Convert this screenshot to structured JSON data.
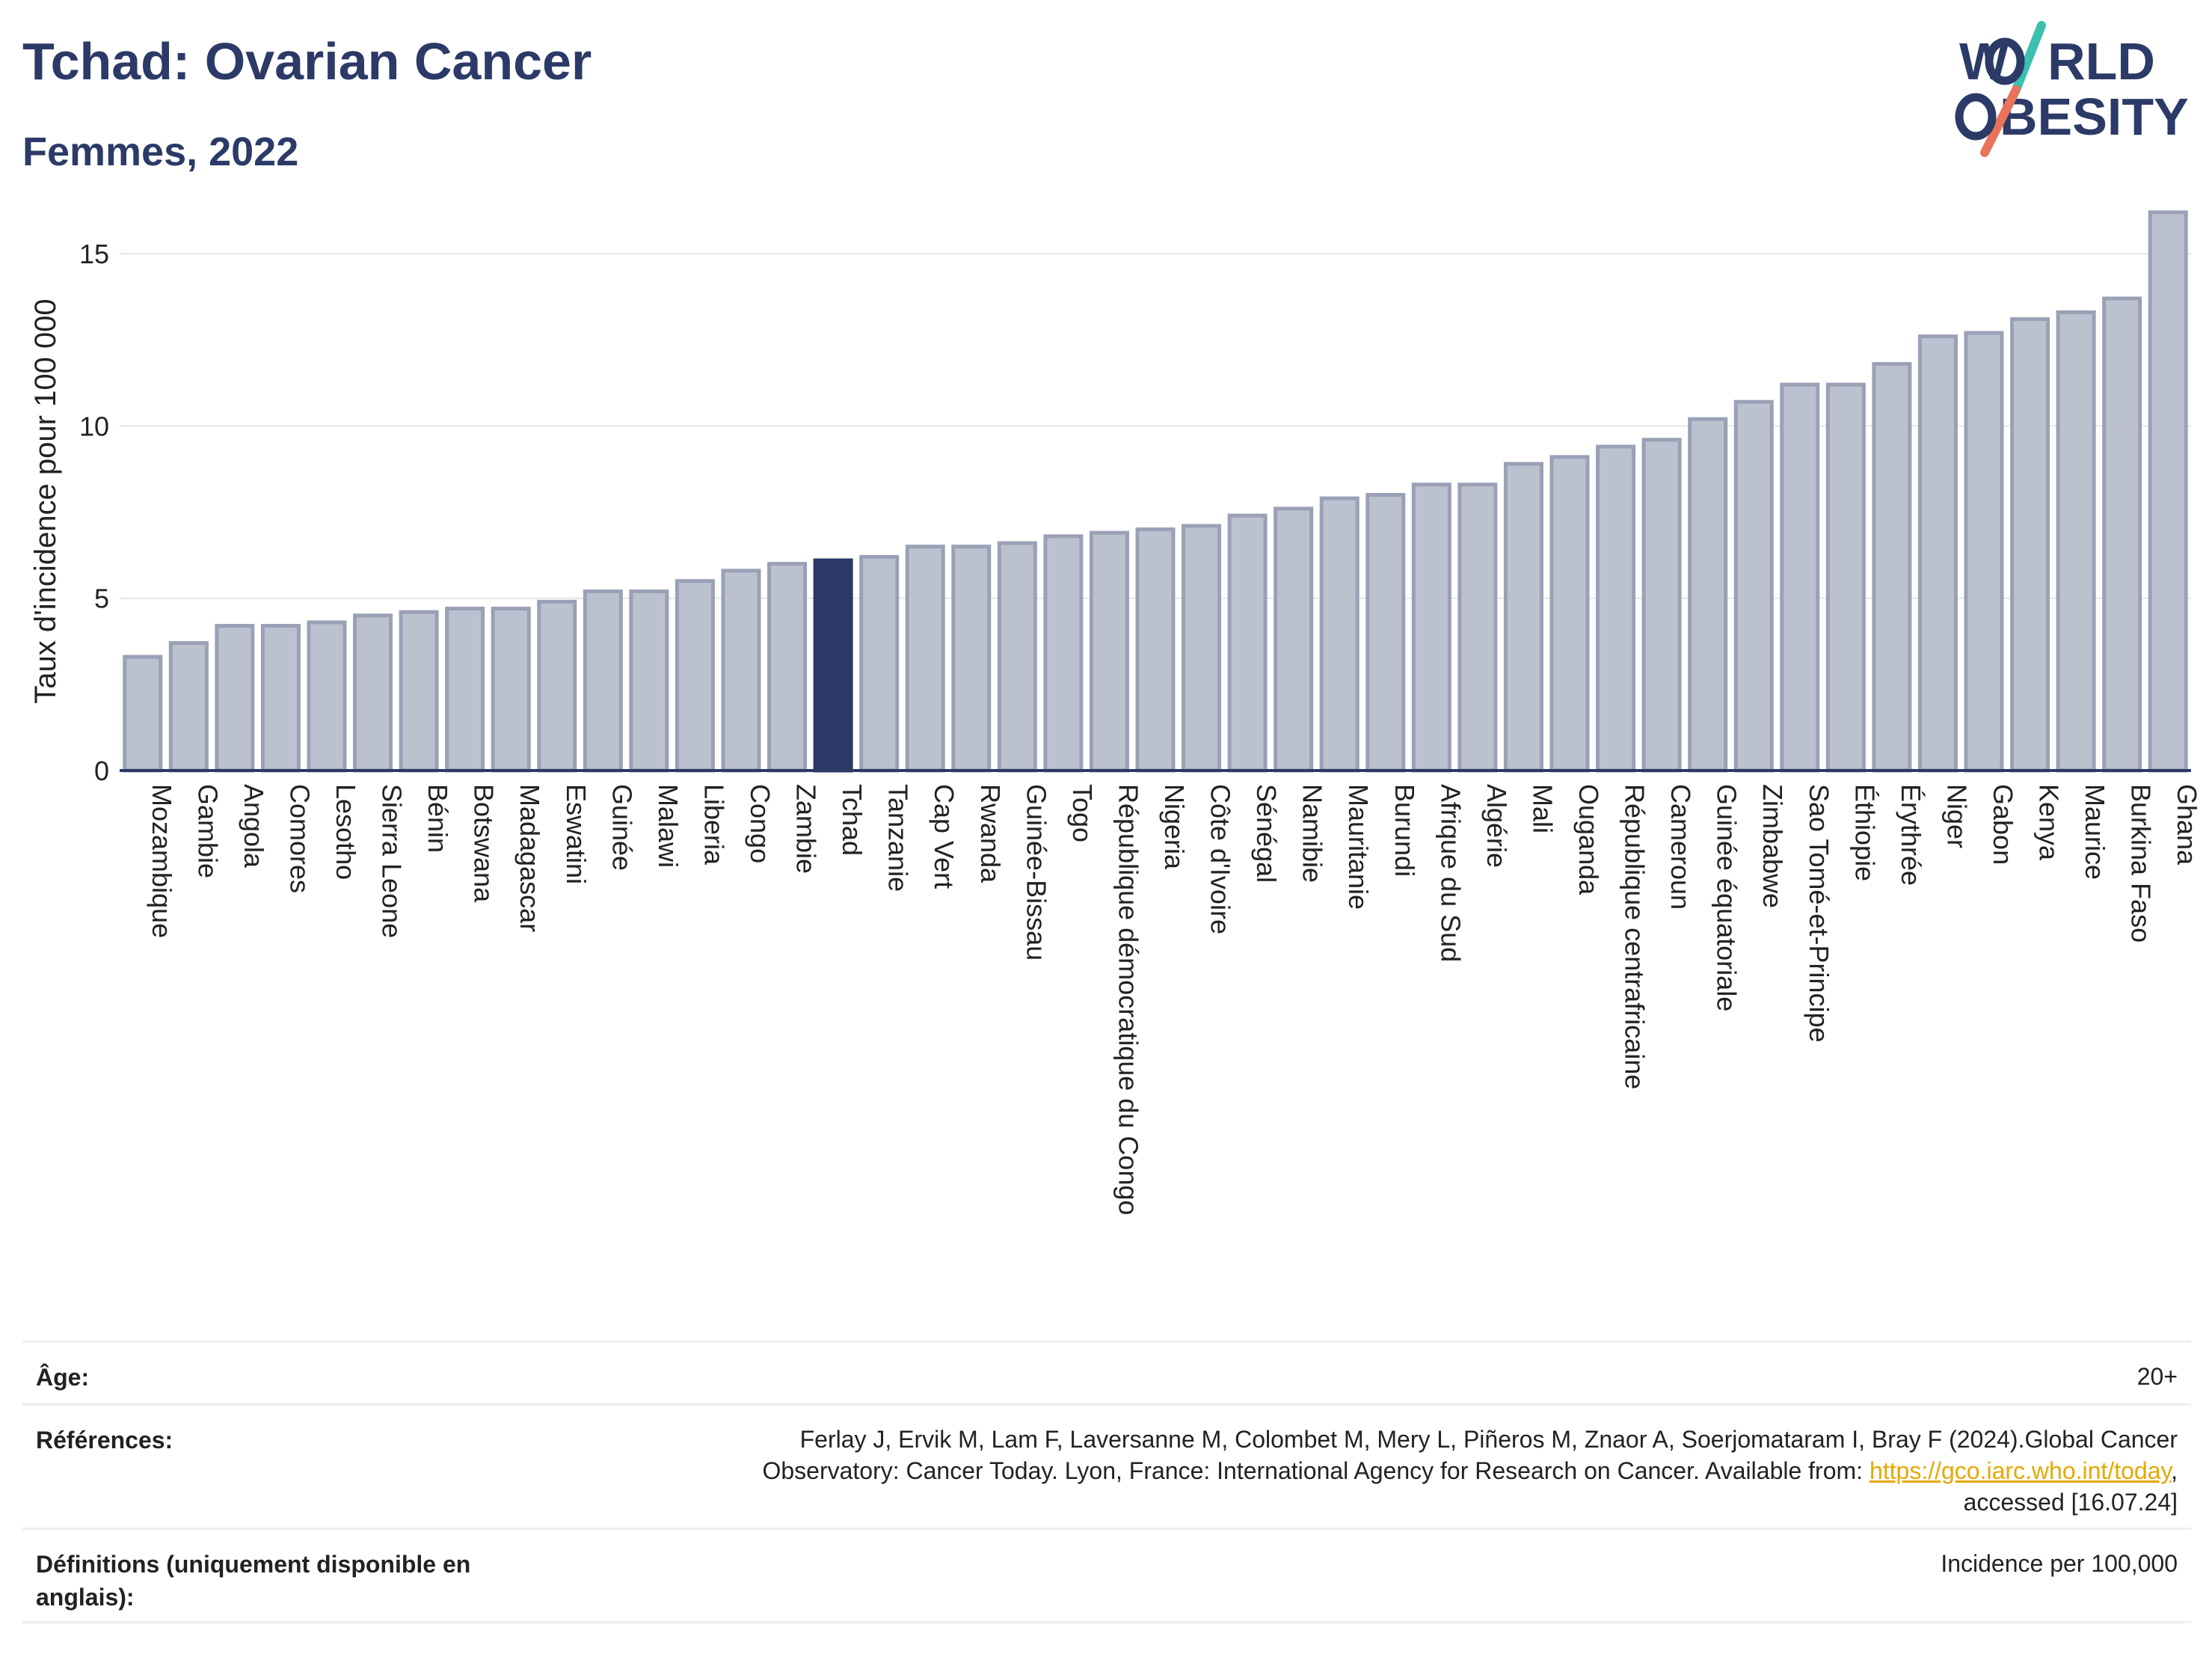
{
  "header": {
    "title": "Tchad: Ovarian Cancer",
    "subtitle": "Femmes, 2022"
  },
  "logo": {
    "line1_a": "W",
    "line1_b": "RLD",
    "line2_b": "BESITY",
    "text_color": "#2b3a67",
    "slash_color_top": "#3bbfb0",
    "slash_color_bottom": "#e8735a"
  },
  "chart_data": {
    "type": "bar",
    "ylabel": "Taux d'incidence pour 100 000",
    "ylim": [
      0,
      16.5
    ],
    "yticks": [
      0,
      5,
      10,
      15
    ],
    "grid": true,
    "highlight": "Tchad",
    "colors": {
      "bar": "#bcc1d0",
      "bar_edge": "#9aa1b6",
      "highlight": "#2b3a67",
      "grid": "#e6e6e6",
      "axis": "#2b3a67"
    },
    "categories": [
      "Mozambique",
      "Gambie",
      "Angola",
      "Comores",
      "Lesotho",
      "Sierra Leone",
      "Bénin",
      "Botswana",
      "Madagascar",
      "Eswatini",
      "Guinée",
      "Malawi",
      "Liberia",
      "Congo",
      "Zambie",
      "Tchad",
      "Tanzanie",
      "Cap Vert",
      "Rwanda",
      "Guinée-Bissau",
      "Togo",
      "République démocratique du Congo",
      "Nigeria",
      "Côte d'Ivoire",
      "Sénégal",
      "Namibie",
      "Mauritanie",
      "Burundi",
      "Afrique du Sud",
      "Algérie",
      "Mali",
      "Ouganda",
      "République centrafricaine",
      "Cameroun",
      "Guinée équatoriale",
      "Zimbabwe",
      "Sao Tomé-et-Principe",
      "Éthiopie",
      "Érythrée",
      "Niger",
      "Gabon",
      "Kenya",
      "Maurice",
      "Burkina Faso",
      "Ghana"
    ],
    "values": [
      3.3,
      3.7,
      4.2,
      4.2,
      4.3,
      4.5,
      4.6,
      4.7,
      4.7,
      4.9,
      5.2,
      5.2,
      5.5,
      5.8,
      6.0,
      6.1,
      6.2,
      6.5,
      6.5,
      6.6,
      6.8,
      6.9,
      7.0,
      7.1,
      7.4,
      7.6,
      7.9,
      8.0,
      8.3,
      8.3,
      8.9,
      9.1,
      9.4,
      9.6,
      10.2,
      10.7,
      11.2,
      11.2,
      11.8,
      12.6,
      12.7,
      13.1,
      13.3,
      13.7,
      16.2
    ]
  },
  "meta": {
    "age_label": "Âge:",
    "age_value": "20+",
    "ref_label": "Références:",
    "ref_text_1": "Ferlay J, Ervik M, Lam F, Laversanne M, Colombet M, Mery L, Piñeros M, Znaor A, Soerjomataram I, Bray F (2024).Global Cancer",
    "ref_text_2": "Observatory: Cancer Today. Lyon, France: International Agency for Research on Cancer. Available from: ",
    "ref_link": "https://gco.iarc.who.int/today",
    "ref_text_3": ",",
    "ref_text_4": "accessed [16.07.24]",
    "def_label": "Définitions (uniquement disponible en anglais):",
    "def_value": "Incidence per 100,000"
  }
}
